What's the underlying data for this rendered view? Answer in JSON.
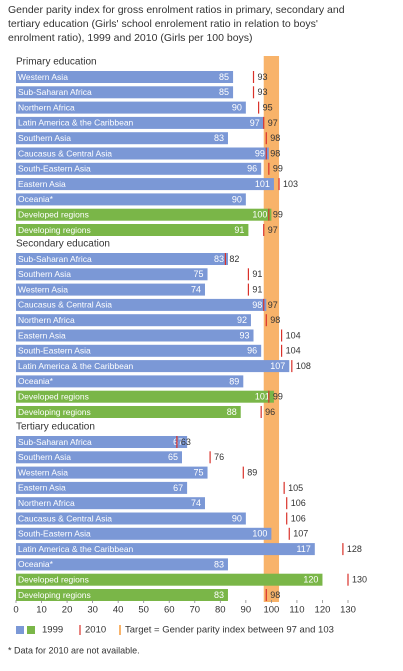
{
  "title": [
    "Gender parity index for gross enrolment ratios in primary, secondary and",
    "tertiary education (Girls' school enrolement ratio in relation to boys'",
    "enrolment ratio), 1999 and 2010 (Girls per 100 boys)"
  ],
  "chart_data": [
    {
      "type": "bar",
      "title": "Primary education",
      "categories": [
        "Western Asia",
        "Sub-Saharan Africa",
        "Northern Africa",
        "Latin America & the Caribbean",
        "Southern Asia",
        "Caucasus & Central Asia",
        "South-Eastern Asia",
        "Eastern Asia",
        "Oceania*",
        "Developed regions",
        "Developing regions"
      ],
      "series": [
        {
          "name": "1999",
          "color": "#7b98d6",
          "colors": [
            "#7b98d6",
            "#7b98d6",
            "#7b98d6",
            "#7b98d6",
            "#7b98d6",
            "#7b98d6",
            "#7b98d6",
            "#7b98d6",
            "#7b98d6",
            "#7ab648",
            "#7ab648"
          ],
          "values": [
            85,
            85,
            90,
            97,
            83,
            99,
            96,
            101,
            90,
            100,
            91
          ]
        },
        {
          "name": "2010",
          "color": "#d9312a",
          "values": [
            93,
            93,
            95,
            97,
            98,
            98,
            99,
            103,
            null,
            99,
            97
          ]
        }
      ],
      "xlim": [
        0,
        130
      ]
    },
    {
      "type": "bar",
      "title": "Secondary education",
      "categories": [
        "Sub-Saharan Africa",
        "Southern Asia",
        "Western Asia",
        "Caucasus & Central Asia",
        "Northern Africa",
        "Eastern Asia",
        "South-Eastern Asia",
        "Latin America & the Caribbean",
        "Oceania*",
        "Developed regions",
        "Developing regions"
      ],
      "series": [
        {
          "name": "1999",
          "color": "#7b98d6",
          "colors": [
            "#7b98d6",
            "#7b98d6",
            "#7b98d6",
            "#7b98d6",
            "#7b98d6",
            "#7b98d6",
            "#7b98d6",
            "#7b98d6",
            "#7b98d6",
            "#7ab648",
            "#7ab648"
          ],
          "values": [
            83,
            75,
            74,
            98,
            92,
            93,
            96,
            107,
            89,
            101,
            88
          ]
        },
        {
          "name": "2010",
          "color": "#d9312a",
          "values": [
            82,
            91,
            91,
            97,
            98,
            104,
            104,
            108,
            null,
            99,
            96
          ]
        }
      ],
      "xlim": [
        0,
        130
      ]
    },
    {
      "type": "bar",
      "title": "Tertiary education",
      "categories": [
        "Sub-Saharan Africa",
        "Southern Asia",
        "Western Asia",
        "Eastern Asia",
        "Northern Africa",
        "Caucasus & Central Asia",
        "South-Eastern Asia",
        "Latin America & the Caribbean",
        "Oceania*",
        "Developed regions",
        "Developing regions"
      ],
      "series": [
        {
          "name": "1999",
          "color": "#7b98d6",
          "colors": [
            "#7b98d6",
            "#7b98d6",
            "#7b98d6",
            "#7b98d6",
            "#7b98d6",
            "#7b98d6",
            "#7b98d6",
            "#7b98d6",
            "#7b98d6",
            "#7ab648",
            "#7ab648"
          ],
          "values": [
            67,
            65,
            75,
            67,
            74,
            90,
            100,
            117,
            83,
            120,
            83
          ]
        },
        {
          "name": "2010",
          "color": "#d9312a",
          "values": [
            63,
            76,
            89,
            105,
            106,
            106,
            107,
            128,
            null,
            130,
            98
          ]
        }
      ],
      "xlim": [
        0,
        130
      ],
      "xticks": [
        0,
        10,
        20,
        30,
        40,
        50,
        60,
        70,
        80,
        90,
        100,
        110,
        120,
        130
      ]
    }
  ],
  "target": {
    "label": "Target = Gender parity index between 97 and 103",
    "range": [
      97,
      103
    ],
    "color": "#f8b36a"
  },
  "note": "* Data for 2010 are not available."
}
